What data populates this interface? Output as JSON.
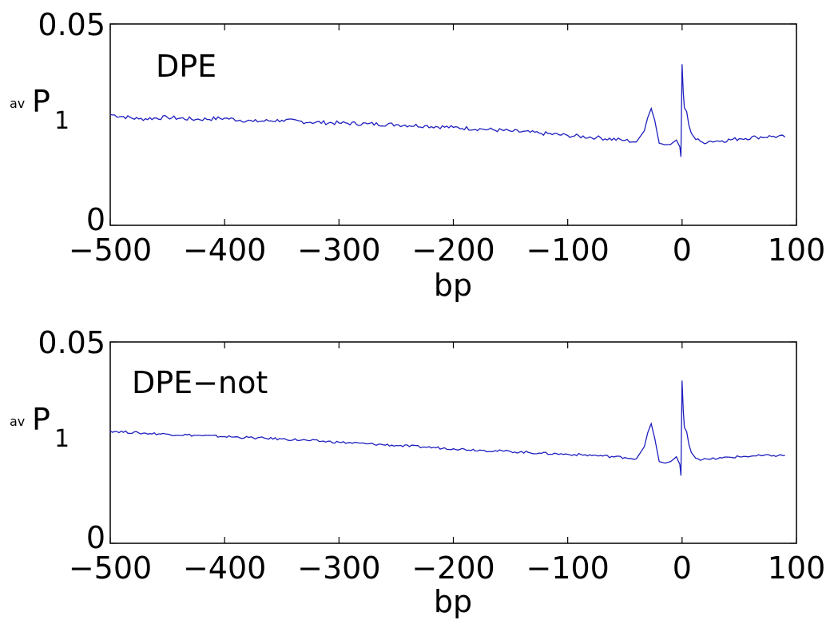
{
  "chart_data": [
    {
      "type": "line",
      "title": "DPE",
      "xlabel": "bp",
      "ylabel": {
        "prefix": "av",
        "main": "P",
        "subscript": "1"
      },
      "xlim": [
        -500,
        100
      ],
      "ylim": [
        0,
        0.05
      ],
      "xticks": [
        "−500",
        "−400",
        "−300",
        "−200",
        "−100",
        "0",
        "100"
      ],
      "yticks": [
        "0",
        "0.05"
      ],
      "color": "#1f1fbf",
      "series": [
        {
          "x": [
            -500,
            -475,
            -450,
            -425,
            -400,
            -375,
            -350,
            -325,
            -300,
            -275,
            -250,
            -225,
            -200,
            -175,
            -150,
            -125,
            -100,
            -75,
            -50,
            -40,
            -33,
            -30,
            -27,
            -24,
            -20,
            -15,
            -10,
            -5,
            -2,
            -1,
            0,
            1,
            2,
            4,
            6,
            8,
            12,
            18,
            25,
            35,
            50,
            65,
            80,
            90
          ],
          "y": [
            0.0275,
            0.0264,
            0.0268,
            0.0263,
            0.0266,
            0.0258,
            0.0261,
            0.0256,
            0.0254,
            0.0252,
            0.025,
            0.0247,
            0.0243,
            0.0239,
            0.0234,
            0.0229,
            0.0223,
            0.0218,
            0.0211,
            0.0207,
            0.0235,
            0.0268,
            0.029,
            0.0262,
            0.0204,
            0.02,
            0.0201,
            0.0212,
            0.0195,
            0.017,
            0.04,
            0.033,
            0.0292,
            0.0282,
            0.0248,
            0.0229,
            0.0213,
            0.0206,
            0.0209,
            0.021,
            0.0215,
            0.0219,
            0.0221,
            0.0219
          ]
        }
      ]
    },
    {
      "type": "line",
      "title": "DPE−not",
      "xlabel": "bp",
      "ylabel": {
        "prefix": "av",
        "main": "P",
        "subscript": "1"
      },
      "xlim": [
        -500,
        100
      ],
      "ylim": [
        0,
        0.05
      ],
      "xticks": [
        "−500",
        "−400",
        "−300",
        "−200",
        "−100",
        "0",
        "100"
      ],
      "yticks": [
        "0",
        "0.05"
      ],
      "color": "#1f1fbf",
      "series": [
        {
          "x": [
            -500,
            -475,
            -450,
            -425,
            -400,
            -375,
            -350,
            -325,
            -300,
            -275,
            -250,
            -225,
            -200,
            -175,
            -150,
            -125,
            -100,
            -75,
            -50,
            -40,
            -33,
            -30,
            -27,
            -24,
            -20,
            -15,
            -10,
            -5,
            -2,
            -1,
            0,
            1,
            2,
            4,
            6,
            8,
            12,
            18,
            25,
            35,
            50,
            65,
            80,
            90
          ],
          "y": [
            0.0279,
            0.0274,
            0.0271,
            0.0268,
            0.0265,
            0.0262,
            0.0259,
            0.0255,
            0.0251,
            0.0247,
            0.0243,
            0.0239,
            0.0235,
            0.0231,
            0.0228,
            0.0224,
            0.0221,
            0.0218,
            0.0213,
            0.021,
            0.024,
            0.0275,
            0.0297,
            0.0262,
            0.0203,
            0.0199,
            0.0203,
            0.0215,
            0.0196,
            0.0168,
            0.0404,
            0.033,
            0.0288,
            0.0277,
            0.0245,
            0.0226,
            0.0211,
            0.0208,
            0.0209,
            0.0212,
            0.0215,
            0.0217,
            0.0218,
            0.0218
          ]
        }
      ]
    }
  ]
}
